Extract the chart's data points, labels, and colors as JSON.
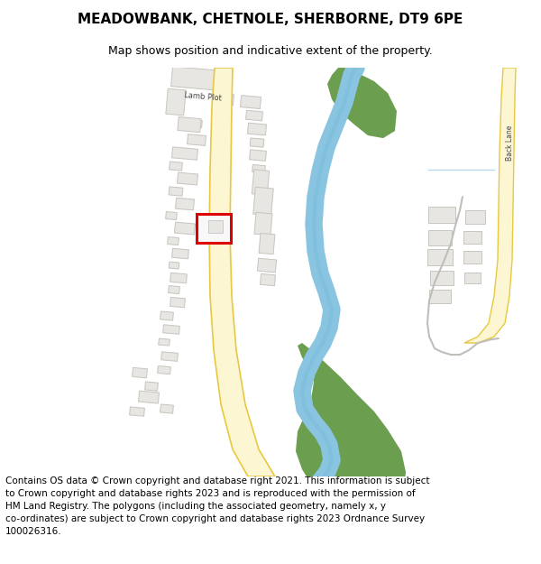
{
  "title": "MEADOWBANK, CHETNOLE, SHERBORNE, DT9 6PE",
  "subtitle": "Map shows position and indicative extent of the property.",
  "copyright_text": "Contains OS data © Crown copyright and database right 2021. This information is subject\nto Crown copyright and database rights 2023 and is reproduced with the permission of\nHM Land Registry. The polygons (including the associated geometry, namely x, y\nco-ordinates) are subject to Crown copyright and database rights 2023 Ordnance Survey\n100026316.",
  "map_bg": "#ffffff",
  "road_color": "#fdf6d3",
  "road_border": "#e8c840",
  "river_color": "#89c4e1",
  "green_color": "#6b9e4e",
  "building_color": "#e8e6e2",
  "building_edge": "#c8c4be",
  "property_edge": "#dd0000",
  "back_lane_color": "#fdf6d3",
  "back_lane_border": "#e8c840",
  "title_fontsize": 11,
  "subtitle_fontsize": 9,
  "copyright_fontsize": 7.5
}
